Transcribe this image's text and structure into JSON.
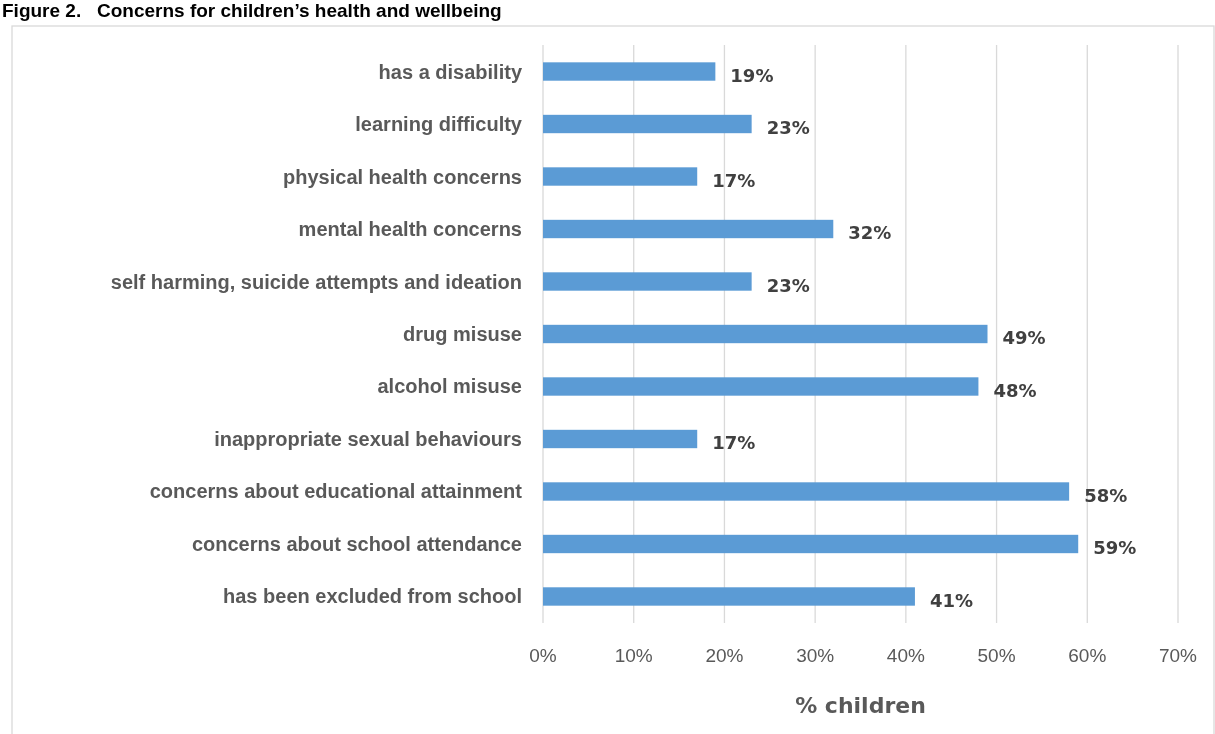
{
  "chart_data": {
    "type": "bar",
    "orientation": "horizontal",
    "title": "Figure 2.   Concerns for children’s health and wellbeing",
    "xlabel": "% children",
    "categories": [
      "has a disability",
      "learning difficulty",
      "physical health concerns",
      "mental health concerns",
      "self harming, suicide attempts and ideation",
      "drug misuse",
      "alcohol misuse",
      "inappropriate sexual behaviours",
      "concerns about educational attainment",
      "concerns about school attendance",
      "has been excluded from school"
    ],
    "values": [
      19,
      23,
      17,
      32,
      23,
      49,
      48,
      17,
      58,
      59,
      41
    ],
    "value_labels": [
      "19%",
      "23%",
      "17%",
      "32%",
      "23%",
      "49%",
      "48%",
      "17%",
      "58%",
      "59%",
      "41%"
    ],
    "color": "#5b9bd5",
    "xlim": [
      0,
      70
    ],
    "xticks": [
      {
        "value": 0,
        "label": "0%"
      },
      {
        "value": 10,
        "label": "10%"
      },
      {
        "value": 20,
        "label": "20%"
      },
      {
        "value": 30,
        "label": "30%"
      },
      {
        "value": 40,
        "label": "40%"
      },
      {
        "value": 50,
        "label": "50%"
      },
      {
        "value": 60,
        "label": "60%"
      },
      {
        "value": 70,
        "label": "70%"
      }
    ],
    "grid": "x"
  }
}
